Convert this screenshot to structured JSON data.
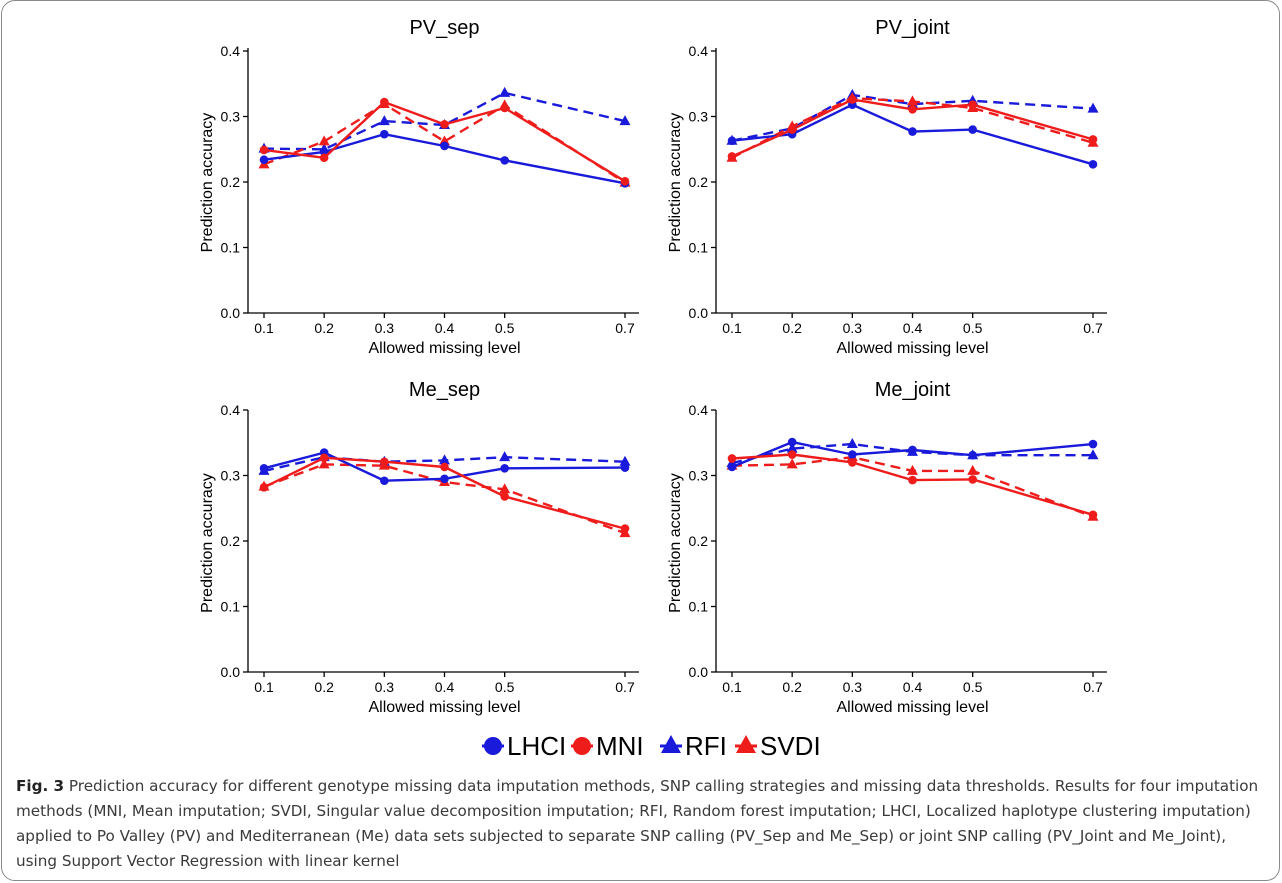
{
  "figure": {
    "label": "Fig. 3",
    "caption": "Prediction accuracy for different genotype missing data imputation methods, SNP calling strategies and missing data thresholds. Results for four imputation methods (MNI, Mean imputation; SVDI, Singular value decomposition imputation; RFI, Random forest imputation; LHCI, Localized haplotype clustering imputation) applied to Po Valley (PV) and Mediterranean (Me) data sets subjected to separate SNP calling (PV_Sep and Me_Sep) or joint SNP calling (PV_Joint and Me_Joint), using Support Vector Regression with linear kernel"
  },
  "legend": {
    "placement": "bottom-center",
    "entries": [
      {
        "label": "LHCI",
        "color": "#1a1adb",
        "marker": "circle",
        "line": "solid"
      },
      {
        "label": "MNI",
        "color": "#ef1c1c",
        "marker": "circle",
        "line": "solid"
      },
      {
        "label": "RFI",
        "color": "#1a1adb",
        "marker": "triangle",
        "line": "dashed"
      },
      {
        "label": "SVDI",
        "color": "#ef1c1c",
        "marker": "triangle",
        "line": "dashed"
      }
    ]
  },
  "chart_data": [
    {
      "type": "line",
      "title": "PV_sep",
      "xlabel": "Allowed missing level",
      "ylabel": "Prediction accuracy",
      "x": [
        0.1,
        0.2,
        0.3,
        0.4,
        0.5,
        0.7
      ],
      "x_ticks": [
        "0.1",
        "0.2",
        "0.3",
        "0.4",
        "0.5",
        "0.7"
      ],
      "y_ticks": [
        "0.0",
        "0.1",
        "0.2",
        "0.3",
        "0.4"
      ],
      "xlim": [
        0.1,
        0.7
      ],
      "ylim": [
        0.0,
        0.4
      ],
      "grid": false,
      "series": [
        {
          "name": "LHCI",
          "values": [
            0.234,
            0.246,
            0.273,
            0.255,
            0.233,
            0.198
          ]
        },
        {
          "name": "MNI",
          "values": [
            0.249,
            0.237,
            0.322,
            0.288,
            0.313,
            0.201
          ]
        },
        {
          "name": "RFI",
          "values": [
            0.251,
            0.25,
            0.293,
            0.287,
            0.336,
            0.293
          ]
        },
        {
          "name": "SVDI",
          "values": [
            0.227,
            0.262,
            0.319,
            0.262,
            0.317,
            0.199
          ]
        }
      ]
    },
    {
      "type": "line",
      "title": "PV_joint",
      "xlabel": "Allowed missing level",
      "ylabel": "Prediction accuracy",
      "x": [
        0.1,
        0.2,
        0.3,
        0.4,
        0.5,
        0.7
      ],
      "x_ticks": [
        "0.1",
        "0.2",
        "0.3",
        "0.4",
        "0.5",
        "0.7"
      ],
      "y_ticks": [
        "0.0",
        "0.1",
        "0.2",
        "0.3",
        "0.4"
      ],
      "xlim": [
        0.1,
        0.7
      ],
      "ylim": [
        0.0,
        0.4
      ],
      "grid": false,
      "series": [
        {
          "name": "LHCI",
          "values": [
            0.263,
            0.273,
            0.318,
            0.277,
            0.28,
            0.227
          ]
        },
        {
          "name": "MNI",
          "values": [
            0.239,
            0.28,
            0.326,
            0.311,
            0.318,
            0.265
          ]
        },
        {
          "name": "RFI",
          "values": [
            0.263,
            0.282,
            0.333,
            0.319,
            0.324,
            0.312
          ]
        },
        {
          "name": "SVDI",
          "values": [
            0.237,
            0.285,
            0.328,
            0.323,
            0.313,
            0.26
          ]
        }
      ]
    },
    {
      "type": "line",
      "title": "Me_sep",
      "xlabel": "Allowed missing level",
      "ylabel": "Prediction accuracy",
      "x": [
        0.1,
        0.2,
        0.3,
        0.4,
        0.5,
        0.7
      ],
      "x_ticks": [
        "0.1",
        "0.2",
        "0.3",
        "0.4",
        "0.5",
        "0.7"
      ],
      "y_ticks": [
        "0.0",
        "0.1",
        "0.2",
        "0.3",
        "0.4"
      ],
      "xlim": [
        0.1,
        0.7
      ],
      "ylim": [
        0.0,
        0.4
      ],
      "grid": false,
      "series": [
        {
          "name": "LHCI",
          "values": [
            0.311,
            0.335,
            0.292,
            0.295,
            0.311,
            0.312
          ]
        },
        {
          "name": "MNI",
          "values": [
            0.282,
            0.327,
            0.321,
            0.313,
            0.268,
            0.219
          ]
        },
        {
          "name": "RFI",
          "values": [
            0.307,
            0.328,
            0.321,
            0.323,
            0.328,
            0.321
          ]
        },
        {
          "name": "SVDI",
          "values": [
            0.283,
            0.317,
            0.315,
            0.29,
            0.279,
            0.212
          ]
        }
      ]
    },
    {
      "type": "line",
      "title": "Me_joint",
      "xlabel": "Allowed missing level",
      "ylabel": "Prediction accuracy",
      "x": [
        0.1,
        0.2,
        0.3,
        0.4,
        0.5,
        0.7
      ],
      "x_ticks": [
        "0.1",
        "0.2",
        "0.3",
        "0.4",
        "0.5",
        "0.7"
      ],
      "y_ticks": [
        "0.0",
        "0.1",
        "0.2",
        "0.3",
        "0.4"
      ],
      "xlim": [
        0.1,
        0.7
      ],
      "ylim": [
        0.0,
        0.4
      ],
      "grid": false,
      "series": [
        {
          "name": "LHCI",
          "values": [
            0.313,
            0.351,
            0.332,
            0.339,
            0.331,
            0.348
          ]
        },
        {
          "name": "MNI",
          "values": [
            0.326,
            0.332,
            0.32,
            0.293,
            0.294,
            0.24
          ]
        },
        {
          "name": "RFI",
          "values": [
            0.319,
            0.341,
            0.348,
            0.336,
            0.331,
            0.331
          ]
        },
        {
          "name": "SVDI",
          "values": [
            0.315,
            0.317,
            0.328,
            0.307,
            0.307,
            0.237
          ]
        }
      ]
    }
  ]
}
